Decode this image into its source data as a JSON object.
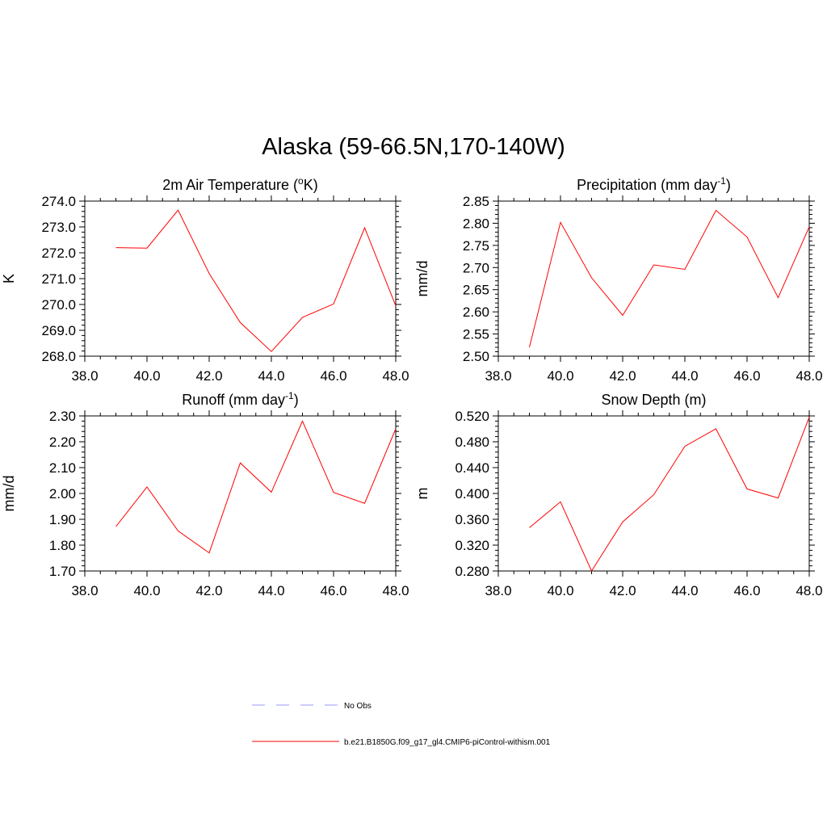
{
  "page": {
    "title": "Alaska (59-66.5N,170-140W)"
  },
  "legend": [
    {
      "label": "No Obs",
      "color": "#9999ff",
      "dash": "dashed"
    },
    {
      "label": "b.e21.B1850G.f09_g17_gl4.CMIP6-piControl-withism.001",
      "color": "#ff0000",
      "dash": "solid"
    }
  ],
  "chart_data": [
    {
      "type": "line",
      "title": "2m Air Temperature (",
      "title_sup": "o",
      "title_tail": "K)",
      "ylabel": "K",
      "xlim": [
        38,
        48
      ],
      "ylim": [
        268,
        274
      ],
      "xticks": [
        "38.0",
        "40.0",
        "42.0",
        "44.0",
        "46.0",
        "48.0"
      ],
      "yticks": [
        "268.0",
        "269.0",
        "270.0",
        "271.0",
        "272.0",
        "273.0",
        "274.0"
      ],
      "series": [
        {
          "color": "#ff0000",
          "x": [
            39,
            40,
            41,
            42,
            43,
            44,
            45,
            46,
            47,
            48
          ],
          "y": [
            272.2,
            272.18,
            273.65,
            271.2,
            269.3,
            268.18,
            269.5,
            270.02,
            272.97,
            269.95
          ]
        }
      ]
    },
    {
      "type": "line",
      "title": "Precipitation (mm day",
      "title_sup": "-1",
      "title_tail": ")",
      "ylabel": "mm/d",
      "xlim": [
        38,
        48
      ],
      "ylim": [
        2.5,
        2.85
      ],
      "xticks": [
        "38.0",
        "40.0",
        "42.0",
        "44.0",
        "46.0",
        "48.0"
      ],
      "yticks": [
        "2.50",
        "2.55",
        "2.60",
        "2.65",
        "2.70",
        "2.75",
        "2.80",
        "2.85"
      ],
      "series": [
        {
          "color": "#ff0000",
          "x": [
            39,
            40,
            41,
            42,
            43,
            44,
            45,
            46,
            47,
            48
          ],
          "y": [
            2.52,
            2.802,
            2.677,
            2.592,
            2.706,
            2.696,
            2.829,
            2.769,
            2.632,
            2.792
          ]
        }
      ]
    },
    {
      "type": "line",
      "title": "Runoff (mm day",
      "title_sup": "-1",
      "title_tail": ")",
      "ylabel": "mm/d",
      "xlim": [
        38,
        48
      ],
      "ylim": [
        1.7,
        2.3
      ],
      "xticks": [
        "38.0",
        "40.0",
        "42.0",
        "44.0",
        "46.0",
        "48.0"
      ],
      "yticks": [
        "1.70",
        "1.80",
        "1.90",
        "2.00",
        "2.10",
        "2.20",
        "2.30"
      ],
      "series": [
        {
          "color": "#ff0000",
          "x": [
            39,
            40,
            41,
            42,
            43,
            44,
            45,
            46,
            47,
            48
          ],
          "y": [
            1.872,
            2.025,
            1.855,
            1.77,
            2.118,
            2.005,
            2.28,
            2.004,
            1.962,
            2.25
          ]
        }
      ]
    },
    {
      "type": "line",
      "title": "Snow Depth (m)",
      "title_sup": "",
      "title_tail": "",
      "ylabel": "m",
      "xlim": [
        38,
        48
      ],
      "ylim": [
        0.28,
        0.52
      ],
      "xticks": [
        "38.0",
        "40.0",
        "42.0",
        "44.0",
        "46.0",
        "48.0"
      ],
      "yticks": [
        "0.280",
        "0.320",
        "0.360",
        "0.400",
        "0.440",
        "0.480",
        "0.520"
      ],
      "series": [
        {
          "color": "#ff0000",
          "x": [
            39,
            40,
            41,
            42,
            43,
            44,
            45,
            46,
            47,
            48
          ],
          "y": [
            0.347,
            0.387,
            0.28,
            0.356,
            0.398,
            0.473,
            0.5,
            0.407,
            0.393,
            0.518
          ]
        }
      ]
    }
  ]
}
